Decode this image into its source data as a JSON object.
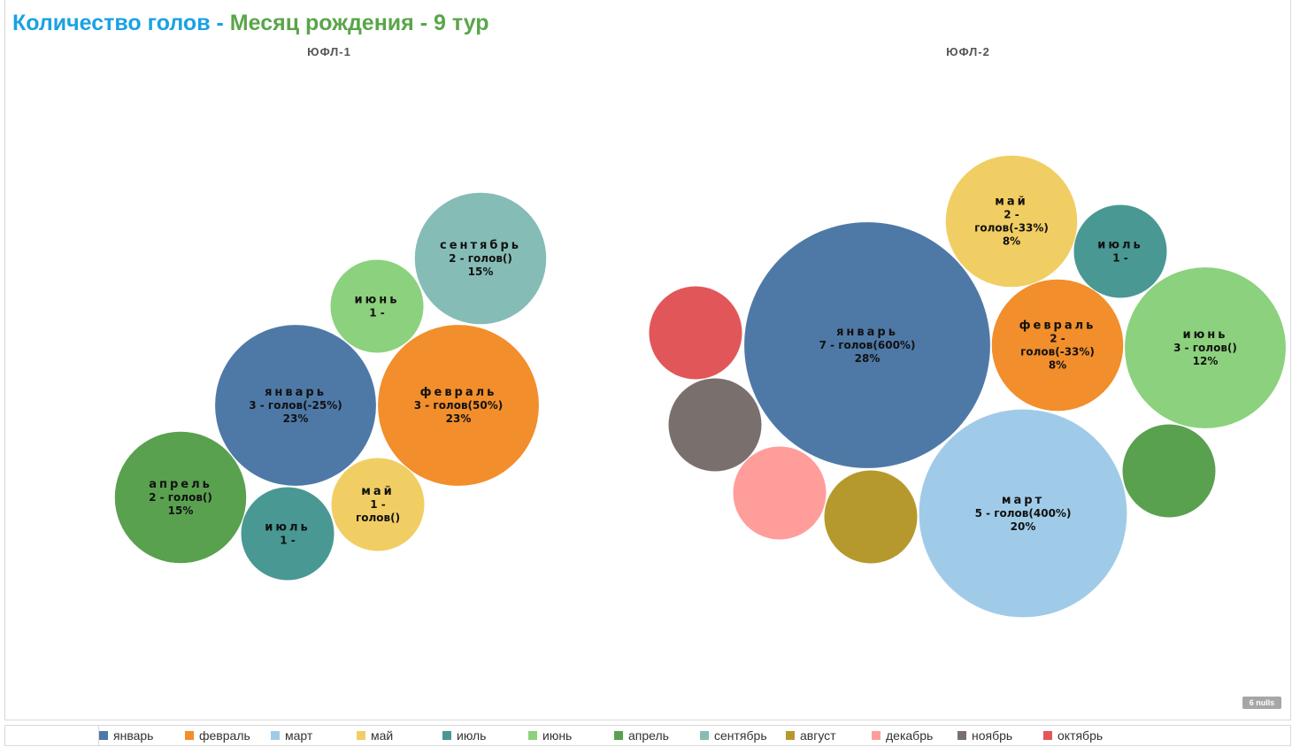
{
  "title": {
    "main": "Количество голов",
    "sep1": " - ",
    "sub": "Месяц рождения",
    "sep2": " - ",
    "tour": "9 тур"
  },
  "nulls_badge": "6 nulls",
  "colors": {
    "январь": "#4e79a7",
    "февраль": "#f28e2b",
    "март": "#a0cbe8",
    "май": "#f1ce63",
    "июль": "#499894",
    "июнь": "#8cd17d",
    "апрель": "#59a14f",
    "сентябрь": "#86bcb6",
    "август": "#b6992d",
    "декабрь": "#ff9d9a",
    "ноябрь": "#79706e",
    "октябрь": "#e15759"
  },
  "legend": [
    "январь",
    "февраль",
    "март",
    "май",
    "июль",
    "июнь",
    "апрель",
    "сентябрь",
    "август",
    "декабрь",
    "ноябрь",
    "октябрь"
  ],
  "chart_data": [
    {
      "type": "bubble",
      "title": "ЮФЛ-1",
      "series": [
        {
          "name": "январь",
          "value": 3,
          "labels": [
            "январь",
            "3 - голов(-25%)",
            "23%"
          ]
        },
        {
          "name": "февраль",
          "value": 3,
          "labels": [
            "февраль",
            "3 - голов(50%)",
            "23%"
          ]
        },
        {
          "name": "сентябрь",
          "value": 2,
          "labels": [
            "сентябрь",
            "2 - голов()",
            "15%"
          ]
        },
        {
          "name": "апрель",
          "value": 2,
          "labels": [
            "апрель",
            "2 - голов()",
            "15%"
          ]
        },
        {
          "name": "июнь",
          "value": 1,
          "labels": [
            "июнь",
            "1 -"
          ]
        },
        {
          "name": "май",
          "value": 1,
          "labels": [
            "май",
            "1 -",
            "голов()"
          ]
        },
        {
          "name": "июль",
          "value": 1,
          "labels": [
            "июль",
            "1 -"
          ]
        }
      ]
    },
    {
      "type": "bubble",
      "title": "ЮФЛ-2",
      "series": [
        {
          "name": "январь",
          "value": 7,
          "labels": [
            "январь",
            "7 - голов(600%)",
            "28%"
          ]
        },
        {
          "name": "март",
          "value": 5,
          "labels": [
            "март",
            "5 - голов(400%)",
            "20%"
          ]
        },
        {
          "name": "июнь",
          "value": 3,
          "labels": [
            "июнь",
            "3 - голов()",
            "12%"
          ]
        },
        {
          "name": "май",
          "value": 2,
          "labels": [
            "май",
            "2 -",
            "голов(-33%)",
            "8%"
          ]
        },
        {
          "name": "февраль",
          "value": 2,
          "labels": [
            "февраль",
            "2 -",
            "голов(-33%)",
            "8%"
          ]
        },
        {
          "name": "июль",
          "value": 1,
          "labels": [
            "июль",
            "1 -"
          ]
        },
        {
          "name": "октябрь",
          "value": 1,
          "labels": []
        },
        {
          "name": "ноябрь",
          "value": 1,
          "labels": []
        },
        {
          "name": "декабрь",
          "value": 1,
          "labels": []
        },
        {
          "name": "август",
          "value": 1,
          "labels": []
        },
        {
          "name": "апрель",
          "value": 1,
          "labels": []
        }
      ]
    }
  ]
}
